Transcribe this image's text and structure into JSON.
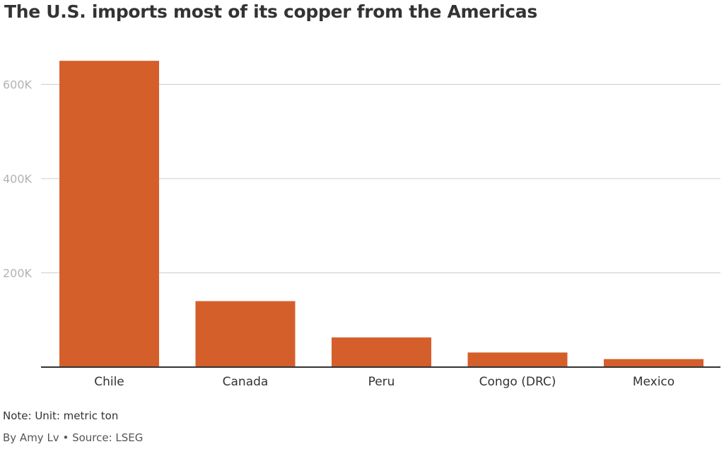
{
  "chart_data": {
    "type": "bar",
    "title": "The U.S. imports most of its copper from the Americas",
    "categories": [
      "Chile",
      "Canada",
      "Peru",
      "Congo (DRC)",
      "Mexico"
    ],
    "values": [
      650000,
      140000,
      63000,
      31000,
      17000
    ],
    "ylim": [
      0,
      700000
    ],
    "yticks": [
      200000,
      400000,
      600000
    ],
    "ytick_labels": [
      "200K",
      "400K",
      "600K"
    ],
    "grid": true,
    "bar_color": "#d45f2b"
  },
  "footer": {
    "note": "Note: Unit: metric ton",
    "credit": "By Amy Lv • Source: LSEG"
  }
}
